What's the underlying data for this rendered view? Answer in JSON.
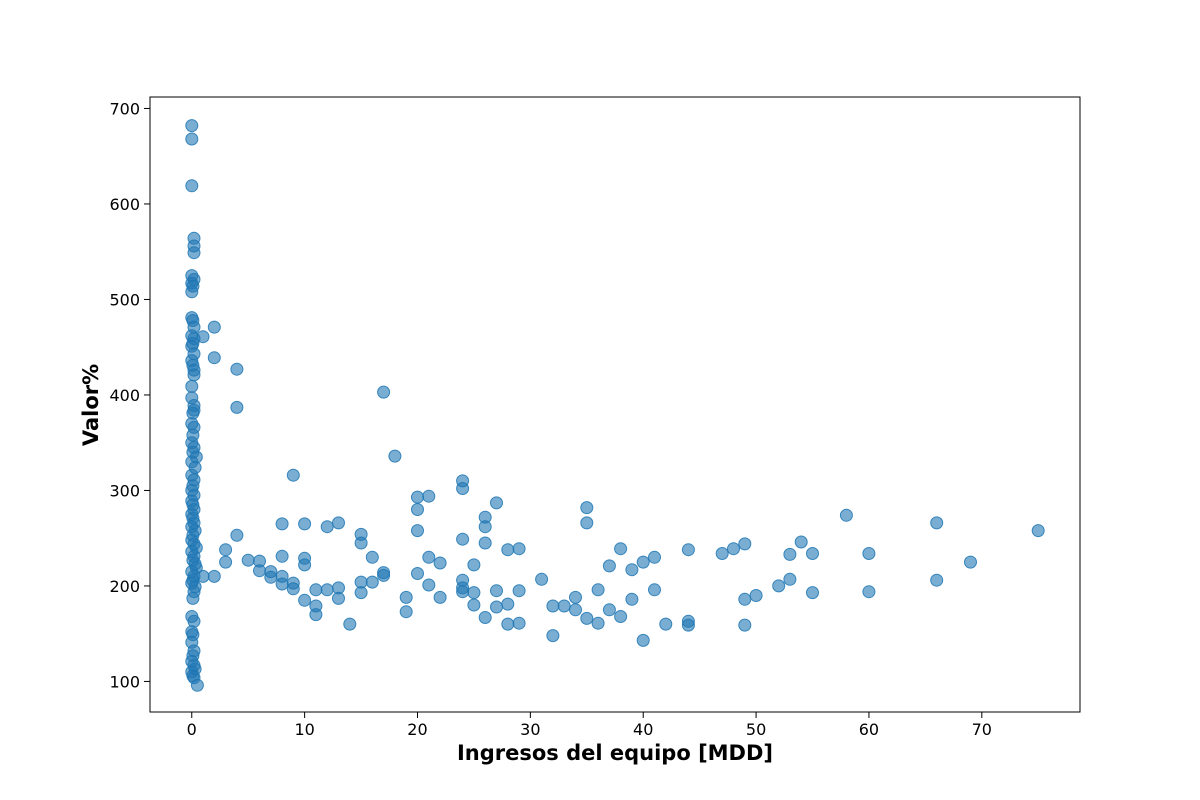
{
  "chart_data": {
    "type": "scatter",
    "title": "",
    "xlabel": "Ingresos del equipo [MDD]",
    "ylabel": "Valor%",
    "xlim": [
      -3.7,
      78.7
    ],
    "ylim": [
      68,
      712
    ],
    "xticks": [
      0,
      10,
      20,
      30,
      40,
      50,
      60,
      70
    ],
    "yticks": [
      100,
      200,
      300,
      400,
      500,
      600,
      700
    ],
    "grid": false,
    "legend": "none",
    "marker_color": "#1f77b4",
    "marker_alpha": 0.6,
    "series": [
      {
        "points": [
          [
            0,
            682
          ],
          [
            0,
            668
          ],
          [
            0,
            619
          ],
          [
            0.2,
            564
          ],
          [
            0.2,
            556
          ],
          [
            0.2,
            549
          ],
          [
            0,
            525
          ],
          [
            0.2,
            521
          ],
          [
            0,
            517
          ],
          [
            0.1,
            514
          ],
          [
            0,
            508
          ],
          [
            0,
            481
          ],
          [
            0.1,
            478
          ],
          [
            0.2,
            471
          ],
          [
            0,
            462
          ],
          [
            0.2,
            459
          ],
          [
            0.1,
            454
          ],
          [
            0,
            451
          ],
          [
            0.2,
            443
          ],
          [
            0,
            436
          ],
          [
            0.1,
            431
          ],
          [
            0.2,
            426
          ],
          [
            0.2,
            421
          ],
          [
            0,
            409
          ],
          [
            0,
            397
          ],
          [
            0.2,
            389
          ],
          [
            0.2,
            384
          ],
          [
            0.1,
            381
          ],
          [
            0,
            370
          ],
          [
            0.2,
            366
          ],
          [
            0.1,
            358
          ],
          [
            0,
            350
          ],
          [
            0.2,
            345
          ],
          [
            0.1,
            340
          ],
          [
            0.4,
            335
          ],
          [
            0,
            330
          ],
          [
            0.3,
            324
          ],
          [
            0,
            316
          ],
          [
            0.2,
            311
          ],
          [
            0.1,
            305
          ],
          [
            0,
            300
          ],
          [
            0.2,
            295
          ],
          [
            0,
            289
          ],
          [
            0.1,
            285
          ],
          [
            0.2,
            280
          ],
          [
            0,
            275
          ],
          [
            0.1,
            271
          ],
          [
            0.2,
            266
          ],
          [
            0,
            262
          ],
          [
            0.3,
            258
          ],
          [
            0.1,
            253
          ],
          [
            0,
            248
          ],
          [
            0.2,
            244
          ],
          [
            0.4,
            240
          ],
          [
            0,
            236
          ],
          [
            0.2,
            231
          ],
          [
            0.1,
            227
          ],
          [
            0.3,
            223
          ],
          [
            0.4,
            219
          ],
          [
            0,
            215
          ],
          [
            0.2,
            210
          ],
          [
            0.1,
            206
          ],
          [
            0,
            203
          ],
          [
            0.3,
            199
          ],
          [
            0.2,
            194
          ],
          [
            0.1,
            187
          ],
          [
            0,
            168
          ],
          [
            0.2,
            163
          ],
          [
            0,
            152
          ],
          [
            0.1,
            149
          ],
          [
            0,
            141
          ],
          [
            0.2,
            132
          ],
          [
            0.1,
            127
          ],
          [
            0,
            121
          ],
          [
            0.2,
            117
          ],
          [
            0.3,
            113
          ],
          [
            0,
            110
          ],
          [
            0.1,
            106
          ],
          [
            0.2,
            104
          ],
          [
            0.5,
            96
          ],
          [
            1,
            461
          ],
          [
            2,
            471
          ],
          [
            2,
            439
          ],
          [
            4,
            427
          ],
          [
            4,
            387
          ],
          [
            1,
            210
          ],
          [
            2,
            210
          ],
          [
            3,
            238
          ],
          [
            3,
            225
          ],
          [
            4,
            253
          ],
          [
            5,
            227
          ],
          [
            6,
            226
          ],
          [
            6,
            216
          ],
          [
            7,
            215
          ],
          [
            7,
            209
          ],
          [
            8,
            202
          ],
          [
            8,
            210
          ],
          [
            8,
            231
          ],
          [
            8,
            265
          ],
          [
            9,
            316
          ],
          [
            9,
            203
          ],
          [
            9,
            197
          ],
          [
            10,
            265
          ],
          [
            10,
            229
          ],
          [
            10,
            222
          ],
          [
            10,
            185
          ],
          [
            11,
            196
          ],
          [
            11,
            179
          ],
          [
            11,
            170
          ],
          [
            12,
            262
          ],
          [
            12,
            196
          ],
          [
            13,
            266
          ],
          [
            13,
            198
          ],
          [
            13,
            187
          ],
          [
            14,
            160
          ],
          [
            15,
            254
          ],
          [
            15,
            245
          ],
          [
            15,
            204
          ],
          [
            15,
            193
          ],
          [
            16,
            230
          ],
          [
            16,
            204
          ],
          [
            17,
            403
          ],
          [
            17,
            214
          ],
          [
            17,
            211
          ],
          [
            18,
            336
          ],
          [
            19,
            188
          ],
          [
            19,
            173
          ],
          [
            20,
            293
          ],
          [
            20,
            280
          ],
          [
            20,
            258
          ],
          [
            20,
            213
          ],
          [
            21,
            294
          ],
          [
            21,
            230
          ],
          [
            21,
            201
          ],
          [
            22,
            224
          ],
          [
            22,
            188
          ],
          [
            24,
            310
          ],
          [
            24,
            302
          ],
          [
            24,
            249
          ],
          [
            24,
            206
          ],
          [
            24,
            198
          ],
          [
            24,
            194
          ],
          [
            25,
            222
          ],
          [
            25,
            193
          ],
          [
            25,
            180
          ],
          [
            26,
            272
          ],
          [
            26,
            262
          ],
          [
            26,
            245
          ],
          [
            26,
            167
          ],
          [
            27,
            287
          ],
          [
            27,
            195
          ],
          [
            27,
            178
          ],
          [
            28,
            238
          ],
          [
            28,
            181
          ],
          [
            28,
            160
          ],
          [
            29,
            239
          ],
          [
            29,
            195
          ],
          [
            29,
            161
          ],
          [
            31,
            207
          ],
          [
            32,
            179
          ],
          [
            32,
            148
          ],
          [
            33,
            179
          ],
          [
            34,
            188
          ],
          [
            34,
            175
          ],
          [
            35,
            282
          ],
          [
            35,
            266
          ],
          [
            35,
            166
          ],
          [
            36,
            196
          ],
          [
            36,
            161
          ],
          [
            37,
            221
          ],
          [
            37,
            175
          ],
          [
            38,
            239
          ],
          [
            38,
            168
          ],
          [
            39,
            217
          ],
          [
            39,
            186
          ],
          [
            40,
            225
          ],
          [
            40,
            143
          ],
          [
            41,
            230
          ],
          [
            41,
            196
          ],
          [
            42,
            160
          ],
          [
            44,
            238
          ],
          [
            44,
            163
          ],
          [
            44,
            159
          ],
          [
            47,
            234
          ],
          [
            48,
            239
          ],
          [
            49,
            244
          ],
          [
            49,
            186
          ],
          [
            49,
            159
          ],
          [
            50,
            190
          ],
          [
            52,
            200
          ],
          [
            53,
            233
          ],
          [
            53,
            207
          ],
          [
            54,
            246
          ],
          [
            55,
            234
          ],
          [
            55,
            193
          ],
          [
            58,
            274
          ],
          [
            60,
            234
          ],
          [
            60,
            194
          ],
          [
            66,
            266
          ],
          [
            66,
            206
          ],
          [
            69,
            225
          ],
          [
            75,
            258
          ]
        ]
      }
    ]
  }
}
